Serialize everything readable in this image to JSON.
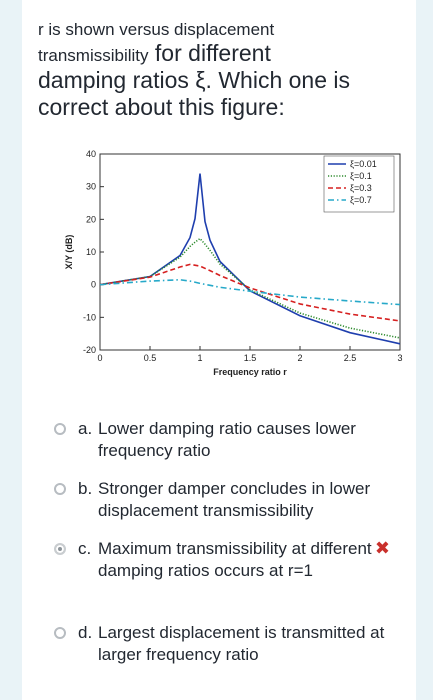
{
  "question": {
    "line1": "r is shown versus displacement",
    "line2_small": "transmissibility",
    "line2_large": " for different",
    "line3": "damping ratios ξ. Which one is",
    "line4": "correct about this figure:"
  },
  "figure": {
    "chart_data": {
      "type": "line",
      "xlabel": "Frequency ratio r",
      "ylabel": "X/Y (dB)",
      "xlim": [
        0,
        3
      ],
      "ylim": [
        -20,
        40
      ],
      "xticks": [
        "0",
        "0.5",
        "1",
        "1.5",
        "2",
        "2.5",
        "3"
      ],
      "yticks": [
        "-20",
        "-10",
        "0",
        "10",
        "20",
        "30",
        "40"
      ],
      "legend_position": "top-right",
      "series": [
        {
          "name": "ξ=0.01",
          "color": "#1f3fae",
          "style": "solid",
          "x": [
            0,
            0.5,
            0.8,
            0.9,
            0.95,
            1.0,
            1.05,
            1.1,
            1.2,
            1.5,
            2,
            2.5,
            3
          ],
          "y": [
            0,
            2.5,
            8.9,
            14.4,
            20.2,
            34.0,
            19.3,
            13.6,
            7.1,
            -1.9,
            -9.5,
            -14.7,
            -18.1
          ]
        },
        {
          "name": "ξ=0.1",
          "color": "#2e8b2e",
          "style": "dotted",
          "x": [
            0,
            0.5,
            0.8,
            0.9,
            0.95,
            1.0,
            1.05,
            1.1,
            1.2,
            1.5,
            2,
            2.5,
            3
          ],
          "y": [
            0,
            2.5,
            8.4,
            11.7,
            13.0,
            14.1,
            12.4,
            10.5,
            6.3,
            -1.6,
            -8.7,
            -13.3,
            -16.3
          ]
        },
        {
          "name": "ξ=0.3",
          "color": "#d62020",
          "style": "dashed",
          "x": [
            0,
            0.5,
            0.8,
            0.9,
            1.0,
            1.1,
            1.2,
            1.5,
            2,
            2.5,
            3
          ],
          "y": [
            0,
            2.3,
            5.4,
            6.2,
            5.7,
            4.3,
            2.8,
            -1.0,
            -5.9,
            -9.0,
            -11.1
          ]
        },
        {
          "name": "ξ=0.7",
          "color": "#27a9c9",
          "style": "dashdot",
          "x": [
            0,
            0.5,
            0.8,
            0.9,
            1.0,
            1.2,
            1.5,
            2,
            2.5,
            3
          ],
          "y": [
            0,
            1.1,
            1.5,
            1.1,
            0.4,
            -0.8,
            -2.0,
            -3.8,
            -5.0,
            -6.1
          ]
        }
      ]
    }
  },
  "options": [
    {
      "letter": "a.",
      "text": "Lower damping ratio causes lower frequency ratio",
      "selected": false
    },
    {
      "letter": "b.",
      "text": "Stronger damper concludes in lower displacement transmissibility",
      "selected": false
    },
    {
      "letter": "c.",
      "text": "Maximum transmissibility at different damping ratios occurs at r=1",
      "selected": true,
      "marked_wrong": true
    },
    {
      "letter": "d.",
      "text": "Largest displacement is transmitted at larger frequency ratio",
      "selected": false
    }
  ],
  "wrong_mark_symbol": "✖"
}
